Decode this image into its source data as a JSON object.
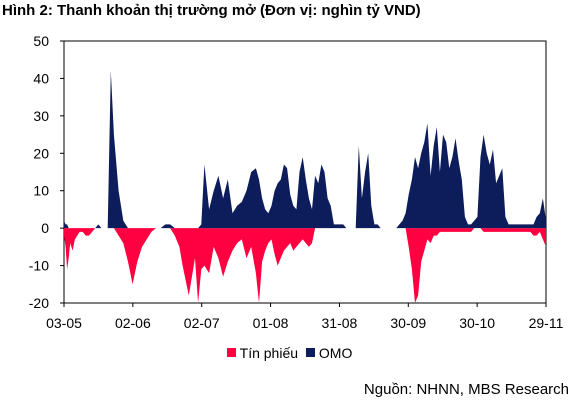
{
  "chart_data": {
    "type": "area",
    "title": "Hình 2: Thanh khoản thị trường mở (Đơn vị: nghìn tỷ VND)",
    "xlabel": "",
    "ylabel": "",
    "ylim": [
      -20,
      50
    ],
    "yticks": [
      "50",
      "40",
      "30",
      "20",
      "10",
      "0",
      "-10",
      "-20"
    ],
    "xtick_labels": [
      "03-05",
      "02-06",
      "02-07",
      "01-08",
      "31-08",
      "30-09",
      "30-10",
      "29-11"
    ],
    "legend_position": "bottom",
    "source": "Nguồn: NHNN, MBS Research",
    "x_index": [
      0,
      2,
      4,
      6,
      8,
      11,
      14,
      17,
      20,
      24,
      28,
      32,
      36,
      40,
      44,
      48,
      52,
      56,
      60,
      64,
      70,
      76,
      82,
      88,
      94,
      100,
      106,
      112,
      118,
      124,
      130,
      136,
      142,
      148,
      152,
      156,
      160,
      164,
      168,
      172,
      176,
      180,
      186,
      192,
      198,
      204,
      210,
      216,
      222,
      228,
      234,
      240,
      246,
      250,
      254,
      258,
      262,
      266,
      270,
      274,
      278,
      282,
      286,
      290,
      294,
      298,
      302,
      306,
      310,
      314,
      318,
      322,
      326,
      330,
      334,
      338,
      342,
      346,
      350,
      354,
      358,
      362,
      366,
      370,
      374,
      378,
      382,
      386,
      390,
      394,
      398,
      402,
      406,
      410,
      414,
      418,
      422,
      426,
      430,
      434,
      438,
      442,
      446,
      450,
      454,
      458,
      462,
      466,
      470,
      474,
      478,
      482,
      486,
      490,
      494,
      498,
      502,
      506,
      510,
      514,
      518,
      522,
      526,
      530,
      534,
      538,
      542,
      546,
      550,
      554,
      558,
      562,
      566,
      570,
      574,
      578,
      582,
      586,
      590,
      594,
      598,
      602,
      606,
      610,
      614,
      618
    ],
    "series": [
      {
        "name": "Tín phiếu",
        "color": "#FF0040",
        "values": [
          -2,
          -5,
          -11,
          -8,
          -4,
          -6,
          -3,
          -2,
          -1,
          -1,
          -2,
          -2,
          -1,
          0,
          0,
          0,
          0,
          0,
          0,
          0,
          -2,
          -4,
          -9,
          -15,
          -9,
          -5,
          -3,
          -1,
          0,
          0,
          0,
          0,
          -2,
          -5,
          -10,
          -14,
          -18,
          -13,
          -8,
          -20,
          -11,
          -10,
          -12,
          -5,
          -8,
          -13,
          -9,
          -6,
          -4,
          -3,
          -8,
          -5,
          -12,
          -20,
          -9,
          -6,
          -4,
          -3,
          -7,
          -10,
          -8,
          -6,
          -5,
          -4,
          -6,
          -5,
          -4,
          -3,
          -4,
          -5,
          -4,
          0,
          0,
          0,
          0,
          0,
          0,
          0,
          0,
          0,
          0,
          0,
          0,
          0,
          0,
          0,
          0,
          0,
          0,
          0,
          0,
          0,
          0,
          0,
          0,
          0,
          0,
          0,
          0,
          0,
          0,
          -5,
          -11,
          -20,
          -18,
          -9,
          -6,
          -3,
          -4,
          -2,
          -2,
          -1,
          -1,
          -1,
          -1,
          -1,
          -1,
          -1,
          -1,
          -1,
          -1,
          -1,
          0,
          0,
          0,
          -1,
          -1,
          -1,
          -1,
          -1,
          -1,
          -1,
          -1,
          -1,
          -1,
          -1,
          -1,
          -1,
          -1,
          -1,
          -1,
          -2,
          -2,
          -1,
          -3,
          -5
        ],
        "rendered_count": 109
      },
      {
        "name": "OMO",
        "color": "#0D1D5C",
        "values": [
          2,
          1,
          1,
          0,
          0,
          0,
          0,
          0,
          0,
          0,
          0,
          0,
          0,
          0,
          1,
          0,
          0,
          0,
          42,
          25,
          10,
          2,
          0,
          0,
          0,
          0,
          0,
          0,
          0,
          0,
          1,
          1,
          0,
          0,
          0,
          0,
          0,
          0,
          0,
          0,
          1,
          17,
          5,
          10,
          14,
          8,
          13,
          4,
          6,
          7,
          10,
          15,
          16,
          13,
          8,
          5,
          4,
          6,
          10,
          12,
          13,
          17,
          16,
          9,
          6,
          5,
          15,
          19,
          13,
          8,
          5,
          14,
          12,
          17,
          15,
          8,
          6,
          1,
          1,
          1,
          1,
          0,
          0,
          0,
          0,
          22,
          8,
          15,
          20,
          6,
          1,
          1,
          0,
          0,
          0,
          0,
          0,
          0,
          1,
          2,
          4,
          9,
          13,
          19,
          16,
          20,
          23,
          28,
          14,
          22,
          27,
          15,
          25,
          23,
          16,
          19,
          24,
          18,
          13,
          3,
          1,
          1,
          2,
          3,
          19,
          25,
          20,
          17,
          21,
          12,
          14,
          16,
          3,
          1,
          1,
          1,
          1,
          1,
          1,
          1,
          1,
          1,
          3,
          4,
          8,
          2
        ],
        "rendered_count": 109
      }
    ]
  },
  "legend": {
    "item1_label": "Tín phiếu",
    "item2_label": "OMO"
  }
}
